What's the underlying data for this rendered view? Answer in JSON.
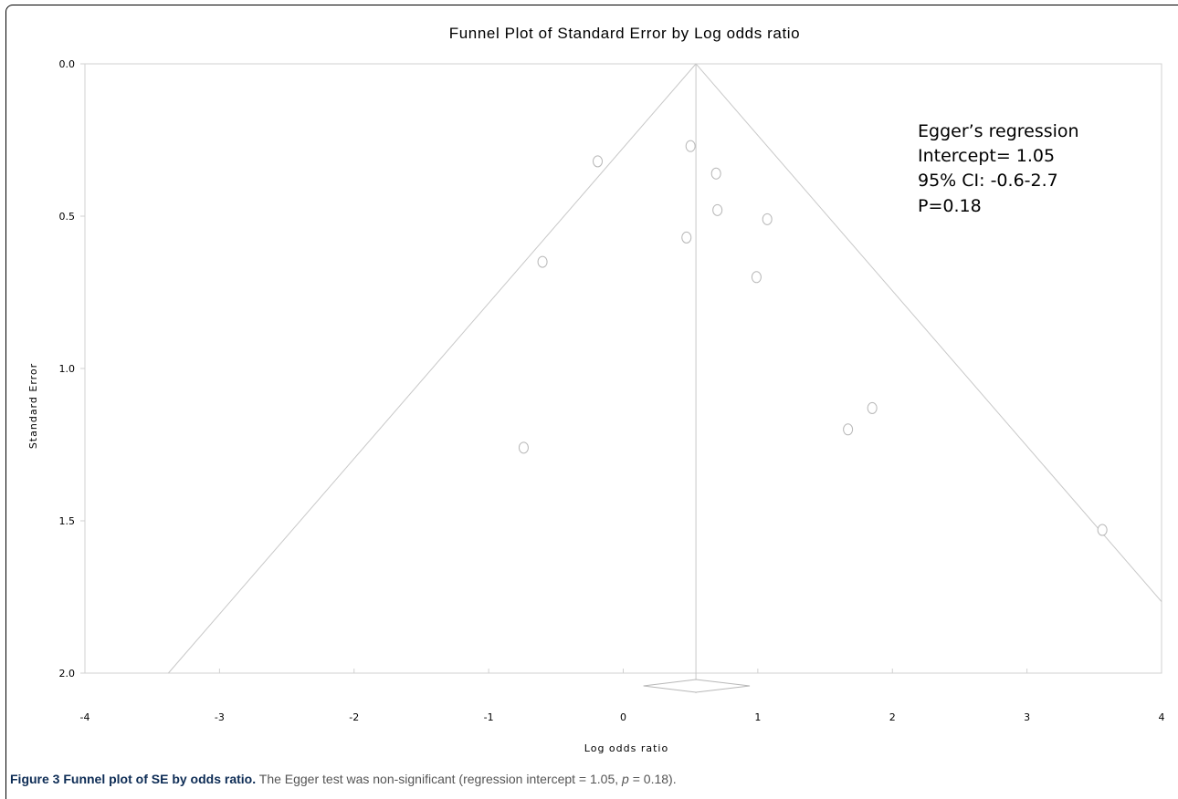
{
  "chart_data": {
    "type": "scatter",
    "title": "Funnel Plot of Standard Error by Log odds ratio",
    "xlabel": "Log odds ratio",
    "ylabel": "Standard Error",
    "xlim": [
      -4,
      4
    ],
    "ylim": [
      0,
      2
    ],
    "y_inverted": true,
    "x_ticks": [
      "-4",
      "-3",
      "-2",
      "-1",
      "0",
      "1",
      "2",
      "3",
      "4"
    ],
    "y_ticks": [
      "0.0",
      "0.5",
      "1.0",
      "1.5",
      "2.0"
    ],
    "grid": false,
    "pooled_estimate": 0.54,
    "pooled_ci": [
      0.15,
      0.94
    ],
    "funnel_lines": true,
    "points": [
      {
        "x": -0.19,
        "y": 0.32
      },
      {
        "x": 0.5,
        "y": 0.27
      },
      {
        "x": 0.69,
        "y": 0.36
      },
      {
        "x": 0.7,
        "y": 0.48
      },
      {
        "x": 1.07,
        "y": 0.51
      },
      {
        "x": 0.47,
        "y": 0.57
      },
      {
        "x": -0.6,
        "y": 0.65
      },
      {
        "x": 0.99,
        "y": 0.7
      },
      {
        "x": 1.67,
        "y": 1.2
      },
      {
        "x": 1.85,
        "y": 1.13
      },
      {
        "x": -0.74,
        "y": 1.26
      },
      {
        "x": 3.56,
        "y": 1.53
      }
    ],
    "annotations": [
      "Egger’s regression",
      "Intercept= 1.05",
      "95% CI: -0.6-2.7",
      "P=0.18"
    ]
  },
  "caption": {
    "title": "Figure 3 Funnel plot of SE by odds ratio.",
    "text_before_p": " The Egger test was non-significant (regression intercept = 1.05, ",
    "p_symbol": "p",
    "text_after_p": " = 0.18)."
  }
}
